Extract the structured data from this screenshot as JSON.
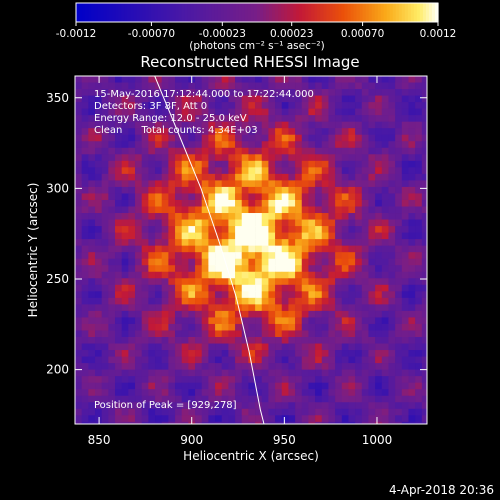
{
  "chart_data": {
    "type": "heatmap",
    "title": "Reconstructed RHESSI Image",
    "xlabel": "Heliocentric X (arcsec)",
    "ylabel": "Heliocentric Y (arcsec)",
    "xlim": [
      837,
      1027
    ],
    "ylim": [
      170,
      362
    ],
    "x_ticks": [
      850,
      900,
      950,
      1000
    ],
    "y_ticks": [
      200,
      250,
      300,
      350
    ],
    "colorbar": {
      "range": [
        -0.0012,
        0.0012
      ],
      "tick_values": [
        -0.0012,
        -0.0007,
        -0.00023,
        0.00023,
        0.0007,
        0.0012
      ],
      "tick_labels": [
        "-0.0012",
        "-0.00070",
        "-0.00023",
        "0.00023",
        "0.00070",
        "0.0012"
      ],
      "units": "(photons cm⁻² s⁻¹ asec⁻²)"
    },
    "annotations": {
      "time_range": "15-May-2016 17:12:44.000 to 17:22:44.000",
      "detectors": "Detectors: 3F 8F, Att 0",
      "energy": "Energy Range: 12.0 - 25.0 keV",
      "method": "Clean      Total counts: 4.34E+03",
      "peak": "Position of Peak = [929,278]"
    },
    "peak": [
      929,
      278
    ],
    "secondary_peak": [
      936,
      253
    ],
    "limb_curve": [
      [
        880,
        362
      ],
      [
        893,
        330
      ],
      [
        905,
        300
      ],
      [
        915,
        270
      ],
      [
        924,
        240
      ],
      [
        931,
        210
      ],
      [
        937,
        178
      ],
      [
        939,
        170
      ]
    ],
    "colors": {
      "limb": "#ffffff",
      "text": "#ffffff",
      "background": "#000000"
    }
  },
  "footer": {
    "timestamp": "4-Apr-2018 20:36"
  }
}
